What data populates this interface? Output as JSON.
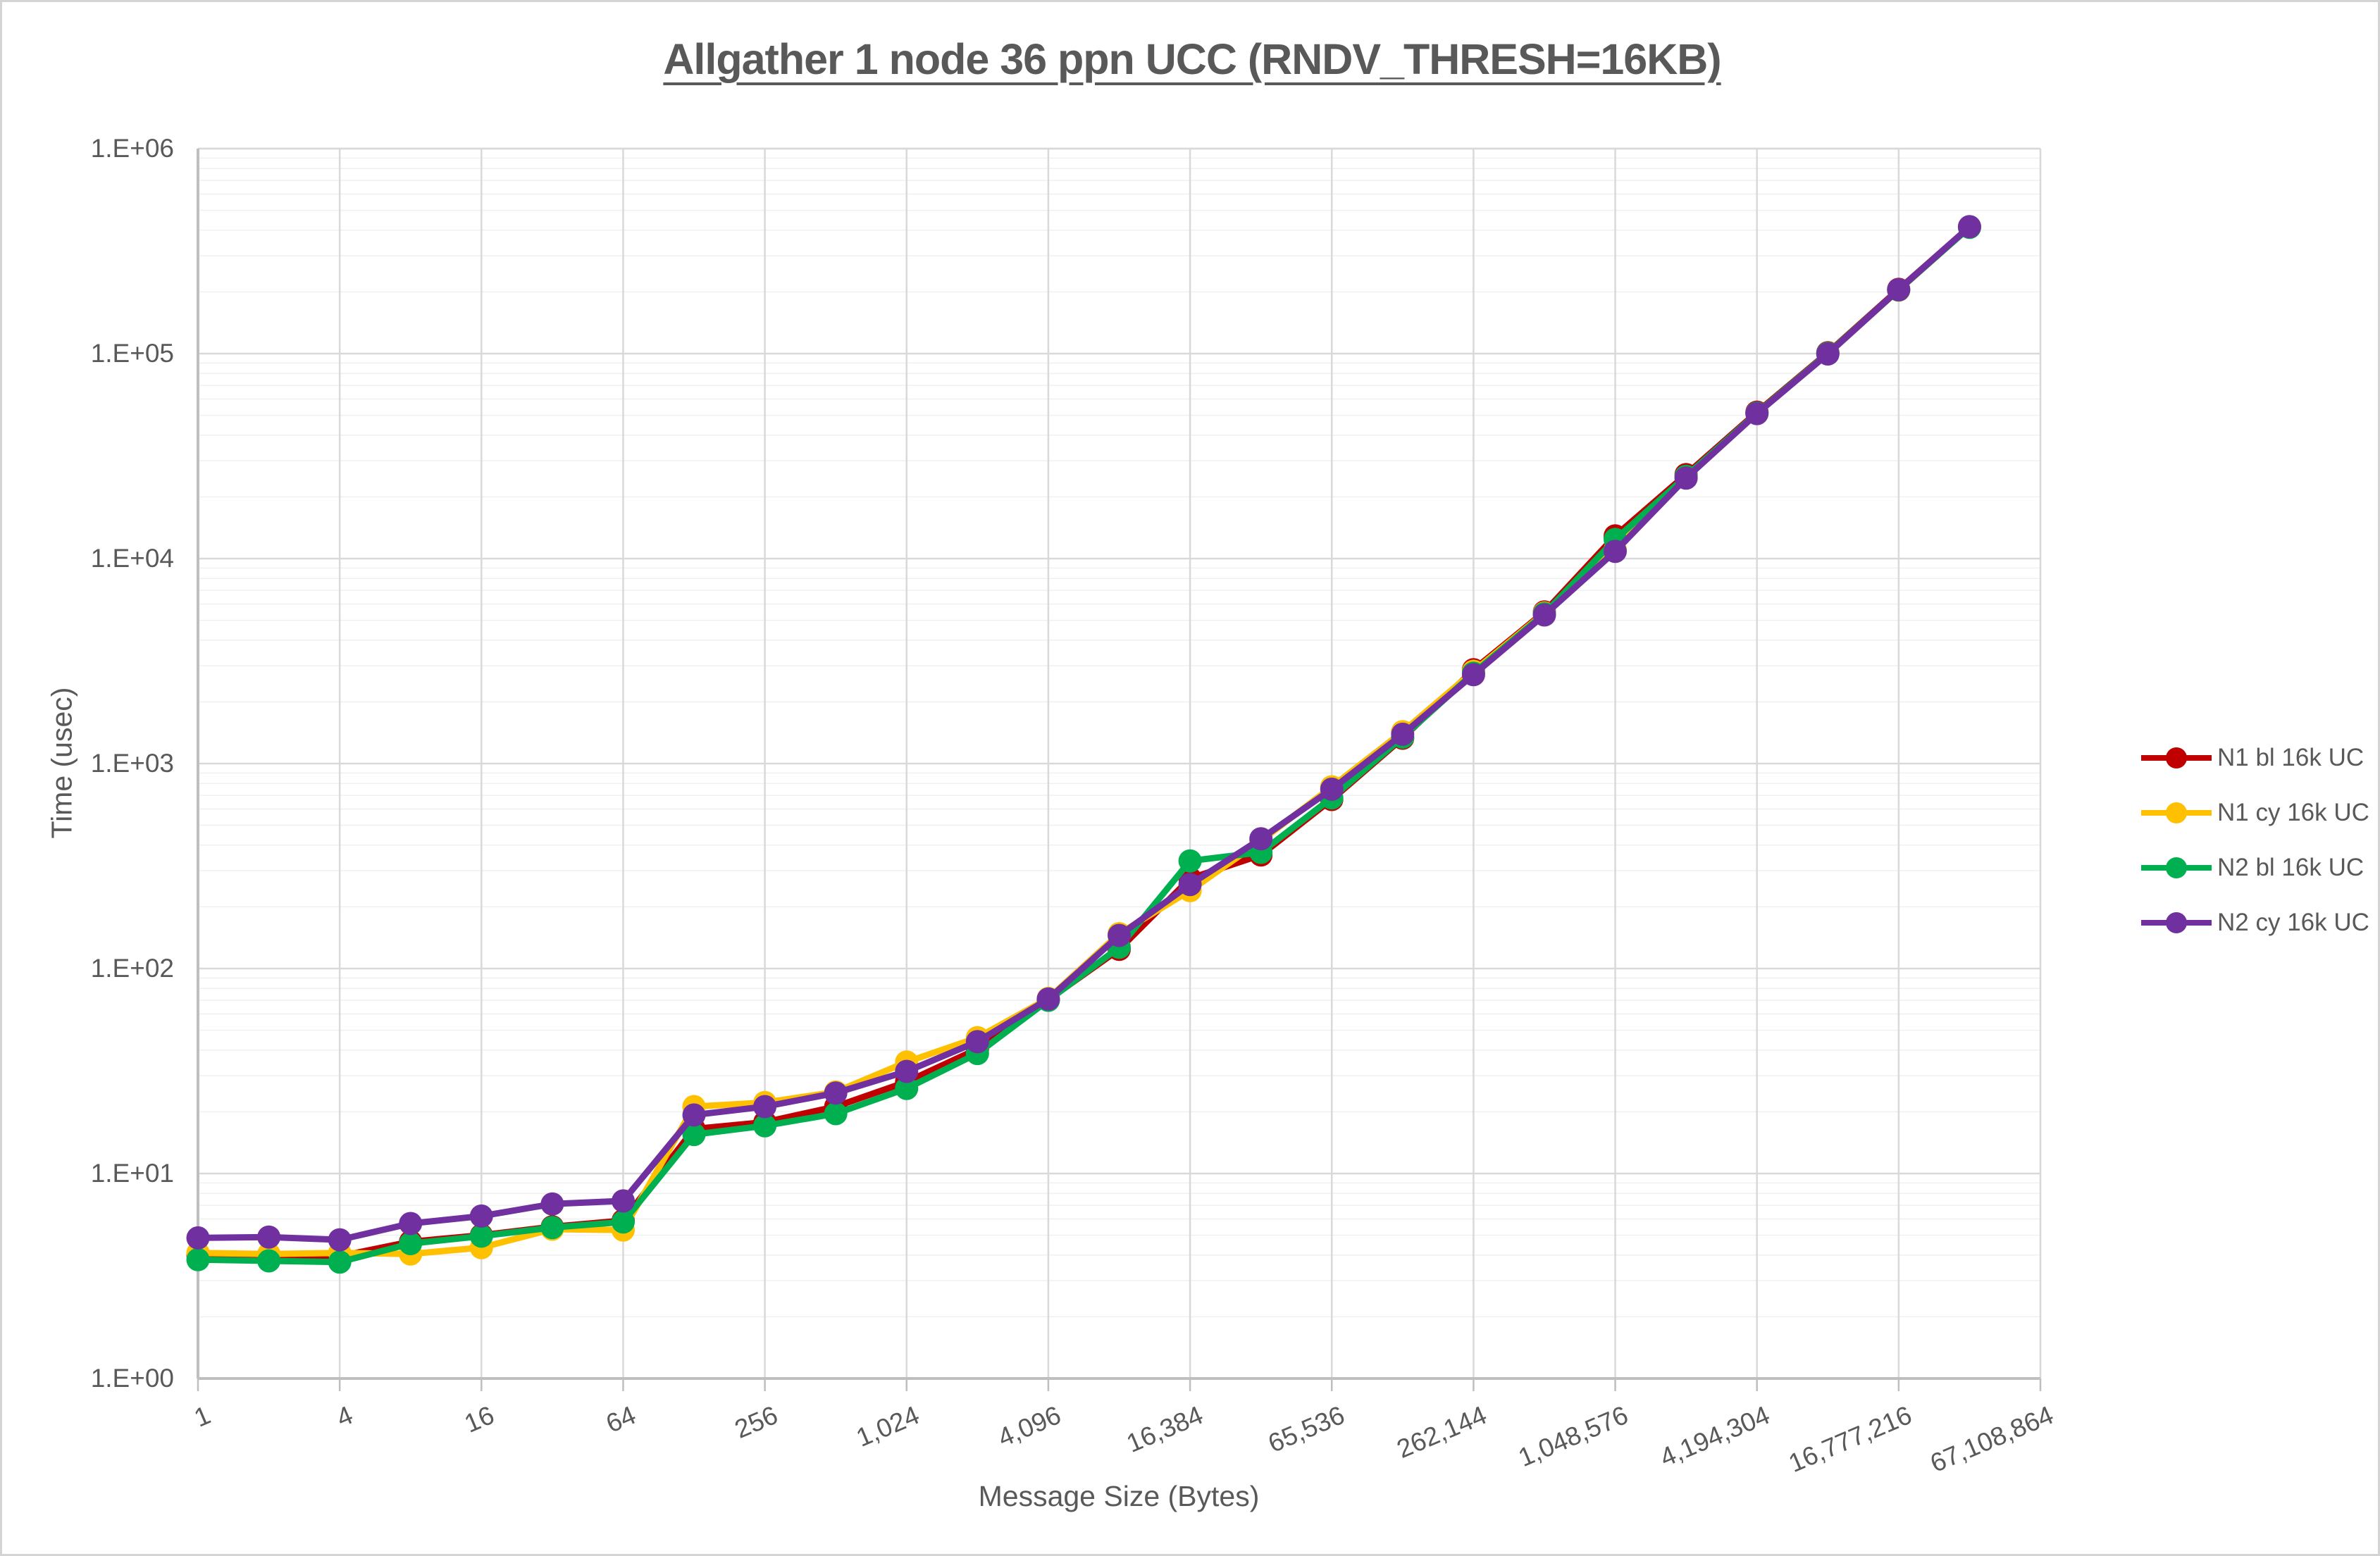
{
  "title": "Allgather 1 node 36 ppn UCC (RNDV_THRESH=16KB)",
  "y_axis": {
    "title": "Time (usec)",
    "tick_labels": [
      "1.E+00",
      "1.E+01",
      "1.E+02",
      "1.E+03",
      "1.E+04",
      "1.E+05",
      "1.E+06"
    ]
  },
  "x_axis": {
    "title": "Message Size (Bytes)",
    "tick_labels": [
      "1",
      "4",
      "16",
      "64",
      "256",
      "1,024",
      "4,096",
      "16,384",
      "65,536",
      "262,144",
      "1,048,576",
      "4,194,304",
      "16,777,216",
      "67,108,864"
    ]
  },
  "legend": {
    "items": [
      {
        "label": "N1 bl 16k UC",
        "color": "#C00000"
      },
      {
        "label": "N1 cy 16k UC",
        "color": "#FFC000"
      },
      {
        "label": "N2 bl 16k UC",
        "color": "#00B050"
      },
      {
        "label": "N2 cy 16k UC",
        "color": "#7030A0"
      }
    ]
  },
  "colors": {
    "text": "#595959",
    "major_grid": "#D9D9D9",
    "minor_grid": "#F0F0F0",
    "axis_line": "#BFBFBF"
  },
  "chart_data": {
    "type": "line",
    "title": "Allgather 1 node 36 ppn UCC (RNDV_THRESH=16KB)",
    "xlabel": "Message Size (Bytes)",
    "ylabel": "Time (usec)",
    "x_scale": "log2",
    "y_scale": "log10",
    "xlim": [
      1,
      67108864
    ],
    "ylim": [
      1,
      1000000
    ],
    "grid": true,
    "legend_position": "right",
    "x": [
      1,
      2,
      4,
      8,
      16,
      32,
      64,
      128,
      256,
      512,
      1024,
      2048,
      4096,
      8192,
      16384,
      32768,
      65536,
      131072,
      262144,
      524288,
      1048576,
      2097152,
      4194304,
      8388608,
      16777216,
      33554432
    ],
    "series": [
      {
        "name": "N1 bl 16k UC",
        "color": "#C00000",
        "values": [
          4.0,
          3.9,
          3.95,
          4.65,
          5.0,
          5.5,
          5.9,
          16.5,
          17.8,
          21.2,
          28,
          40.5,
          70.5,
          124,
          275,
          358,
          668,
          1330,
          2870,
          5490,
          12900,
          25700,
          51800,
          101000,
          206000,
          415000
        ]
      },
      {
        "name": "N1 cy 16k UC",
        "color": "#FFC000",
        "values": [
          4.1,
          4.05,
          4.1,
          4.05,
          4.35,
          5.35,
          5.3,
          21.2,
          22.2,
          25,
          35,
          46,
          71.5,
          148,
          240,
          420,
          770,
          1430,
          2820,
          5430,
          11050,
          25000,
          51200,
          100000,
          204000,
          414000
        ]
      },
      {
        "name": "N2 bl 16k UC",
        "color": "#00B050",
        "values": [
          3.8,
          3.75,
          3.7,
          4.55,
          4.95,
          5.45,
          5.8,
          15.5,
          17.1,
          19.6,
          26,
          38.5,
          70,
          127,
          335,
          369,
          680,
          1345,
          2760,
          5380,
          12400,
          25200,
          51300,
          100300,
          204500,
          413000
        ]
      },
      {
        "name": "N2 cy 16k UC",
        "color": "#7030A0",
        "values": [
          4.85,
          4.9,
          4.75,
          5.7,
          6.2,
          7.1,
          7.35,
          19.3,
          21.2,
          24.7,
          31.5,
          44,
          71,
          145,
          257,
          430,
          750,
          1390,
          2715,
          5310,
          10850,
          24700,
          51000,
          99600,
          205000,
          416000
        ]
      }
    ]
  }
}
